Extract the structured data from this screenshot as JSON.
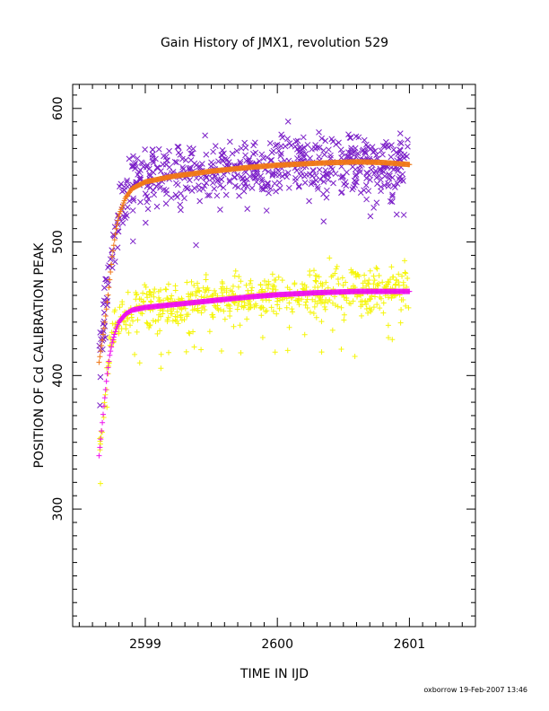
{
  "chart_data": {
    "type": "scatter",
    "title": "Gain History of JMX1, revolution 529",
    "xlabel": "TIME IN IJD",
    "ylabel": "POSITION OF Cd CALIBRATION PEAK",
    "xlim": [
      2598.45,
      2601.5
    ],
    "ylim": [
      212,
      618
    ],
    "xticks": [
      2599,
      2600,
      2601
    ],
    "yticks": [
      300,
      400,
      500,
      600
    ],
    "grid": false,
    "legend": "none",
    "series": [
      {
        "marker": "x",
        "color": "#7b1fc8",
        "x_range": [
          2598.65,
          2601.0
        ],
        "trend": [
          [
            2598.65,
            420
          ],
          [
            2598.7,
            455
          ],
          [
            2598.75,
            490
          ],
          [
            2598.8,
            520
          ],
          [
            2598.85,
            535
          ],
          [
            2598.9,
            542
          ],
          [
            2599.0,
            546
          ],
          [
            2599.5,
            553
          ],
          [
            2600.0,
            557
          ],
          [
            2600.5,
            560
          ],
          [
            2601.0,
            558
          ]
        ],
        "spread": 16
      },
      {
        "marker": "+",
        "color": "#f5f50a",
        "x_range": [
          2598.65,
          2601.0
        ],
        "trend": [
          [
            2598.65,
            345
          ],
          [
            2598.7,
            395
          ],
          [
            2598.75,
            430
          ],
          [
            2598.8,
            445
          ],
          [
            2598.9,
            450
          ],
          [
            2599.0,
            452
          ],
          [
            2599.5,
            457
          ],
          [
            2600.0,
            461
          ],
          [
            2600.5,
            463
          ],
          [
            2601.0,
            464
          ]
        ],
        "spread": 12
      },
      {
        "marker": "+",
        "color": "#f07818",
        "type": "fit",
        "points": [
          [
            2598.65,
            410
          ],
          [
            2598.68,
            430
          ],
          [
            2598.7,
            445
          ],
          [
            2598.72,
            462
          ],
          [
            2598.75,
            490
          ],
          [
            2598.78,
            510
          ],
          [
            2598.8,
            520
          ],
          [
            2598.85,
            533
          ],
          [
            2598.9,
            540
          ],
          [
            2599.0,
            545
          ],
          [
            2599.2,
            549
          ],
          [
            2599.5,
            553
          ],
          [
            2599.8,
            556
          ],
          [
            2600.0,
            557.5
          ],
          [
            2600.3,
            559
          ],
          [
            2600.6,
            560
          ],
          [
            2600.8,
            559.5
          ],
          [
            2601.0,
            558
          ]
        ]
      },
      {
        "marker": "+",
        "color": "#ee11ee",
        "type": "fit",
        "points": [
          [
            2598.65,
            340
          ],
          [
            2598.67,
            360
          ],
          [
            2598.69,
            380
          ],
          [
            2598.71,
            400
          ],
          [
            2598.73,
            415
          ],
          [
            2598.75,
            425
          ],
          [
            2598.78,
            435
          ],
          [
            2598.8,
            440
          ],
          [
            2598.85,
            446
          ],
          [
            2598.9,
            449
          ],
          [
            2599.0,
            451
          ],
          [
            2599.2,
            453
          ],
          [
            2599.5,
            456
          ],
          [
            2599.8,
            459
          ],
          [
            2600.0,
            460.5
          ],
          [
            2600.3,
            462
          ],
          [
            2600.6,
            463
          ],
          [
            2601.0,
            463
          ]
        ]
      }
    ]
  },
  "footer": "oxborrow 19-Feb-2007 13:46"
}
